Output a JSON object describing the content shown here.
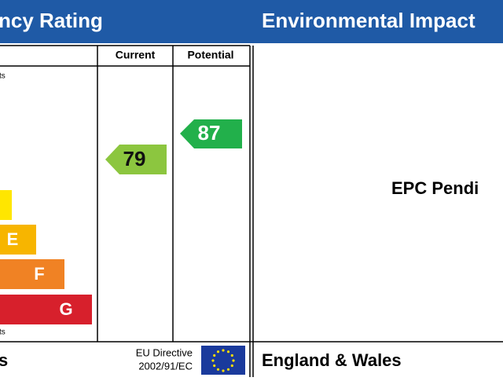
{
  "left_panel": {
    "title": "ncy Rating",
    "columns": [
      "Current",
      "Potential"
    ],
    "top_note": "ts",
    "bottom_note": "ts",
    "bands": [
      "E",
      "F",
      "G"
    ],
    "current": "79",
    "potential": "87",
    "footer": {
      "region": "s",
      "directive": "EU Directive",
      "directive_code": "2002/91/EC"
    }
  },
  "right_panel": {
    "title": "Environmental Impact",
    "status": "EPC Pendi",
    "footer": "England & Wales"
  }
}
